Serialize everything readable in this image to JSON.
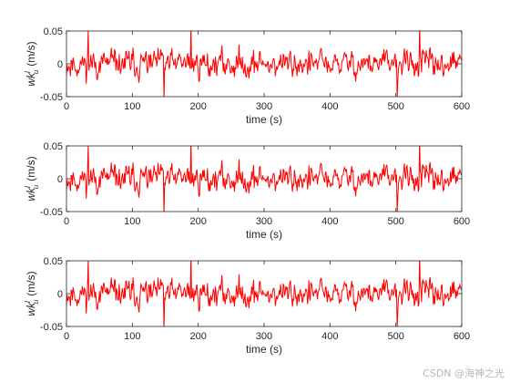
{
  "watermark": "CSDN @海神之光",
  "colors": {
    "series": "#ff0000",
    "axes": "#262626",
    "background": "#ffffff"
  },
  "chart_data": [
    {
      "type": "line",
      "xlabel": "time (s)",
      "ylabel": {
        "var": "wk",
        "superscript": "l",
        "subscript": "u",
        "unit": "(m/s)"
      },
      "xlim": [
        0,
        600
      ],
      "ylim": [
        -0.05,
        0.05
      ],
      "xticks": [
        0,
        100,
        200,
        300,
        400,
        500,
        600
      ],
      "yticks": [
        -0.05,
        0,
        0.05
      ],
      "ytick_labels": [
        "-0.05",
        "0",
        "0.05"
      ],
      "grid": false,
      "series": [
        {
          "kind": "noise",
          "seed": 11,
          "samples": 600,
          "min": -0.055,
          "max": 0.06,
          "spikes": [
            [
              33,
              0.052
            ],
            [
              189,
              0.06
            ],
            [
              148,
              -0.055
            ],
            [
              536,
              0.06
            ],
            [
              502,
              -0.052
            ]
          ]
        }
      ]
    },
    {
      "type": "line",
      "xlabel": "time (s)",
      "ylabel": {
        "var": "wk",
        "superscript": "l",
        "subscript": "u",
        "unit": "(m/s)"
      },
      "xlim": [
        0,
        600
      ],
      "ylim": [
        -0.05,
        0.05
      ],
      "xticks": [
        0,
        100,
        200,
        300,
        400,
        500,
        600
      ],
      "yticks": [
        -0.05,
        0,
        0.05
      ],
      "ytick_labels": [
        "-0.05",
        "0",
        "0.05"
      ],
      "grid": false,
      "series": [
        {
          "kind": "noise",
          "seed": 11,
          "samples": 600,
          "min": -0.055,
          "max": 0.06,
          "spikes": [
            [
              33,
              0.052
            ],
            [
              189,
              0.06
            ],
            [
              148,
              -0.055
            ],
            [
              536,
              0.06
            ],
            [
              502,
              -0.052
            ]
          ]
        }
      ]
    },
    {
      "type": "line",
      "xlabel": "time (s)",
      "ylabel": {
        "var": "wk",
        "superscript": "l",
        "subscript": "u",
        "unit": "(m/s)"
      },
      "xlim": [
        0,
        600
      ],
      "ylim": [
        -0.05,
        0.05
      ],
      "xticks": [
        0,
        100,
        200,
        300,
        400,
        500,
        600
      ],
      "yticks": [
        -0.05,
        0,
        0.05
      ],
      "ytick_labels": [
        "-0.05",
        "0",
        "0.05"
      ],
      "grid": false,
      "series": [
        {
          "kind": "noise",
          "seed": 11,
          "samples": 600,
          "min": -0.055,
          "max": 0.06,
          "spikes": [
            [
              33,
              0.052
            ],
            [
              189,
              0.06
            ],
            [
              148,
              -0.055
            ],
            [
              536,
              0.06
            ],
            [
              502,
              -0.052
            ]
          ]
        }
      ]
    }
  ]
}
